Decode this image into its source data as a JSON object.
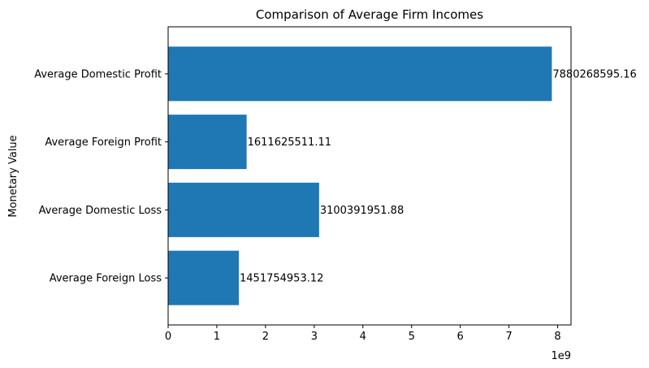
{
  "chart_data": {
    "type": "bar",
    "orientation": "horizontal",
    "title": "Comparison of Average Firm Incomes",
    "xlabel": "",
    "ylabel": "Monetary Value",
    "x_offset_label": "1e9",
    "x_scale": 1000000000,
    "categories": [
      "Average Domestic Profit",
      "Average Foreign Profit",
      "Average Domestic Loss",
      "Average Foreign Loss"
    ],
    "values": [
      7880268595.16,
      1611625511.11,
      3100391951.88,
      1451754953.12
    ],
    "data_labels": [
      "7880268595.16",
      "1611625511.11",
      "3100391951.88",
      "1451754953.12"
    ],
    "xticks": [
      0,
      1,
      2,
      3,
      4,
      5,
      6,
      7,
      8
    ],
    "xlim": [
      0,
      8274282025
    ],
    "bar_color": "#1f77b4",
    "grid": false,
    "legend": "none"
  }
}
